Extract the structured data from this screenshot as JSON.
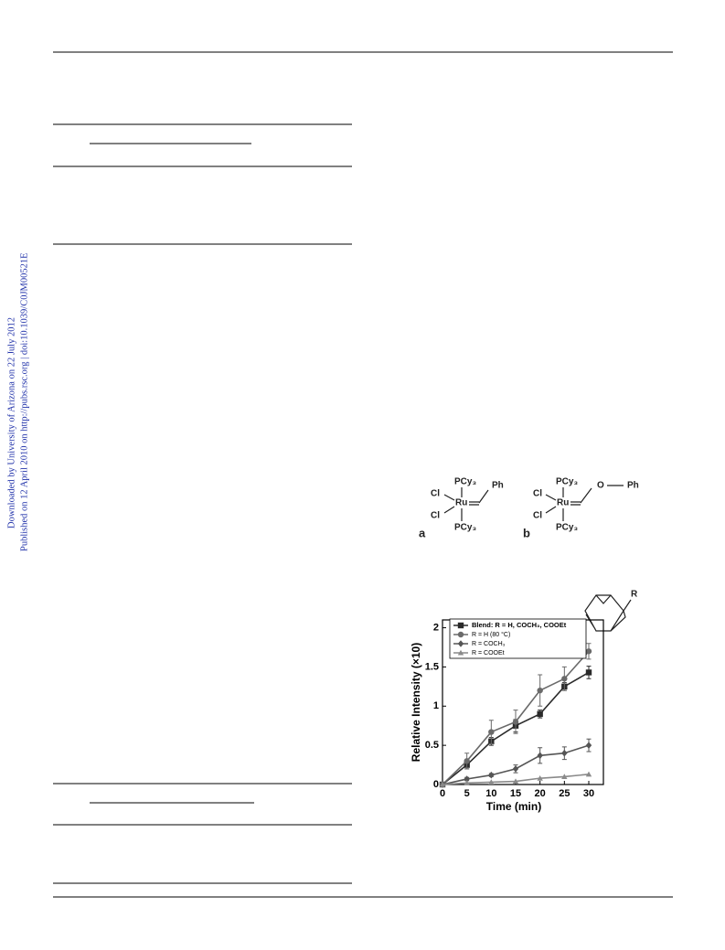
{
  "sidebar": {
    "line1": "Downloaded by University of Arizona on 22 July 2012",
    "line2": "Published on 12 April 2010 on http://pubs.rsc.org | doi:10.1039/C0JM00521E"
  },
  "structures": {
    "pcy3": "PCy₃",
    "cl": "Cl",
    "ru": "Ru",
    "ph": "Ph",
    "o": "O",
    "label_a": "a",
    "label_b": "b",
    "r": "R"
  },
  "chart_data": {
    "type": "line",
    "x_label": "Time (min)",
    "y_label": "Relative Intensity (×10)",
    "x": [
      0,
      5,
      10,
      15,
      20,
      25,
      30
    ],
    "xlim": [
      0,
      33
    ],
    "ylim": [
      0,
      2.1
    ],
    "xticks": [
      0,
      5,
      10,
      15,
      20,
      25,
      30
    ],
    "yticks": [
      0,
      0.5,
      1,
      1.5,
      2
    ],
    "series": [
      {
        "name": "Blend: R = H, COCH₃, COOEt",
        "color": "#2a2a2a",
        "marker": "square",
        "values": [
          0,
          0.25,
          0.55,
          0.75,
          0.9,
          1.25,
          1.43
        ],
        "errors": [
          null,
          0.05,
          0.05,
          0.08,
          0.05,
          0.05,
          0.08
        ]
      },
      {
        "name": "R = H (80 °C)",
        "color": "#6a6a6a",
        "marker": "circle",
        "values": [
          0,
          0.3,
          0.67,
          0.8,
          1.2,
          1.35,
          1.7
        ],
        "errors": [
          null,
          0.1,
          0.15,
          0.15,
          0.2,
          0.15,
          0.1
        ]
      },
      {
        "name": "R = COCH₃",
        "color": "#555555",
        "marker": "diamond",
        "values": [
          0,
          0.07,
          0.12,
          0.2,
          0.37,
          0.4,
          0.5
        ],
        "errors": [
          null,
          0.02,
          0.02,
          0.05,
          0.1,
          0.08,
          0.08
        ]
      },
      {
        "name": "R = COOEt",
        "color": "#8a8a8a",
        "marker": "triangle",
        "values": [
          0,
          0.02,
          0.03,
          0.04,
          0.08,
          0.1,
          0.13
        ],
        "errors": [
          null,
          null,
          null,
          null,
          null,
          null,
          null
        ]
      }
    ]
  }
}
